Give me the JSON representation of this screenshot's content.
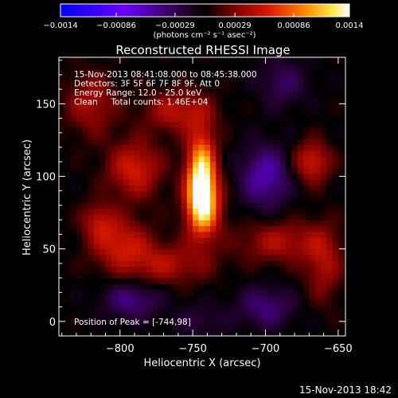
{
  "chart_data": {
    "type": "heatmap",
    "title": "Reconstructed RHESSI Image",
    "xlabel": "Heliocentric X (arcsec)",
    "ylabel": "Heliocentric Y (arcsec)",
    "xlim": [
      -842,
      -645
    ],
    "ylim": [
      -10,
      182
    ],
    "x_ticks": [
      -800,
      -750,
      -700,
      -650
    ],
    "x_tick_labels": [
      "−800",
      "−750",
      "−700",
      "−650"
    ],
    "y_ticks": [
      0,
      50,
      100,
      150
    ],
    "y_tick_labels": [
      "0",
      "50",
      "100",
      "150"
    ],
    "colorbar": {
      "range": [
        -0.0014,
        0.0014
      ],
      "ticks": [
        -0.0014,
        -0.00086,
        -0.00029,
        0.00029,
        0.00086,
        0.0014
      ],
      "tick_labels": [
        "−0.0014",
        "−0.00086",
        "−0.00029",
        "0.00029",
        "0.00086",
        "0.0014"
      ],
      "unit_label": "(photons cm⁻² s⁻¹ asec⁻²)"
    },
    "info_lines": [
      "15-Nov-2013 08:41:08.000 to 08:45:38.000",
      "Detectors: 3F 5F 6F 7F 8F 9F, Att 0",
      "Energy Range: 12.0 - 25.0 keV",
      "Clean     Total counts: 1.46E+04"
    ],
    "peak_label": "Position of Peak = [-744,98]",
    "peak_position": [
      -744,
      98
    ],
    "sources": [
      {
        "x": -744,
        "y": 98,
        "sx": 7,
        "sy": 22,
        "amp": 1.0
      },
      {
        "x": -742,
        "y": 78,
        "sx": 9,
        "sy": 14,
        "amp": 0.45
      },
      {
        "x": -790,
        "y": 105,
        "sx": 13,
        "sy": 14,
        "amp": 0.42
      },
      {
        "x": -760,
        "y": 145,
        "sx": 16,
        "sy": 10,
        "amp": 0.35
      },
      {
        "x": -800,
        "y": 55,
        "sx": 14,
        "sy": 12,
        "amp": 0.38
      },
      {
        "x": -770,
        "y": 40,
        "sx": 22,
        "sy": 10,
        "amp": 0.32
      },
      {
        "x": -820,
        "y": 150,
        "sx": 12,
        "sy": 15,
        "amp": 0.3
      },
      {
        "x": -668,
        "y": 110,
        "sx": 9,
        "sy": 10,
        "amp": 0.42
      },
      {
        "x": -690,
        "y": 55,
        "sx": 20,
        "sy": 10,
        "amp": 0.32
      },
      {
        "x": -660,
        "y": 40,
        "sx": 9,
        "sy": 18,
        "amp": 0.3
      },
      {
        "x": -815,
        "y": 70,
        "sx": 8,
        "sy": 9,
        "amp": 0.28
      },
      {
        "x": -700,
        "y": 100,
        "sx": 12,
        "sy": 15,
        "amp": -0.4
      },
      {
        "x": -792,
        "y": 15,
        "sx": 14,
        "sy": 9,
        "amp": -0.3
      },
      {
        "x": -700,
        "y": 10,
        "sx": 14,
        "sy": 10,
        "amp": -0.28
      },
      {
        "x": -688,
        "y": 165,
        "sx": 12,
        "sy": 12,
        "amp": -0.22
      },
      {
        "x": -745,
        "y": 0,
        "sx": 12,
        "sy": 9,
        "amp": -0.15
      }
    ]
  },
  "footer_timestamp": "15-Nov-2013 18:42"
}
